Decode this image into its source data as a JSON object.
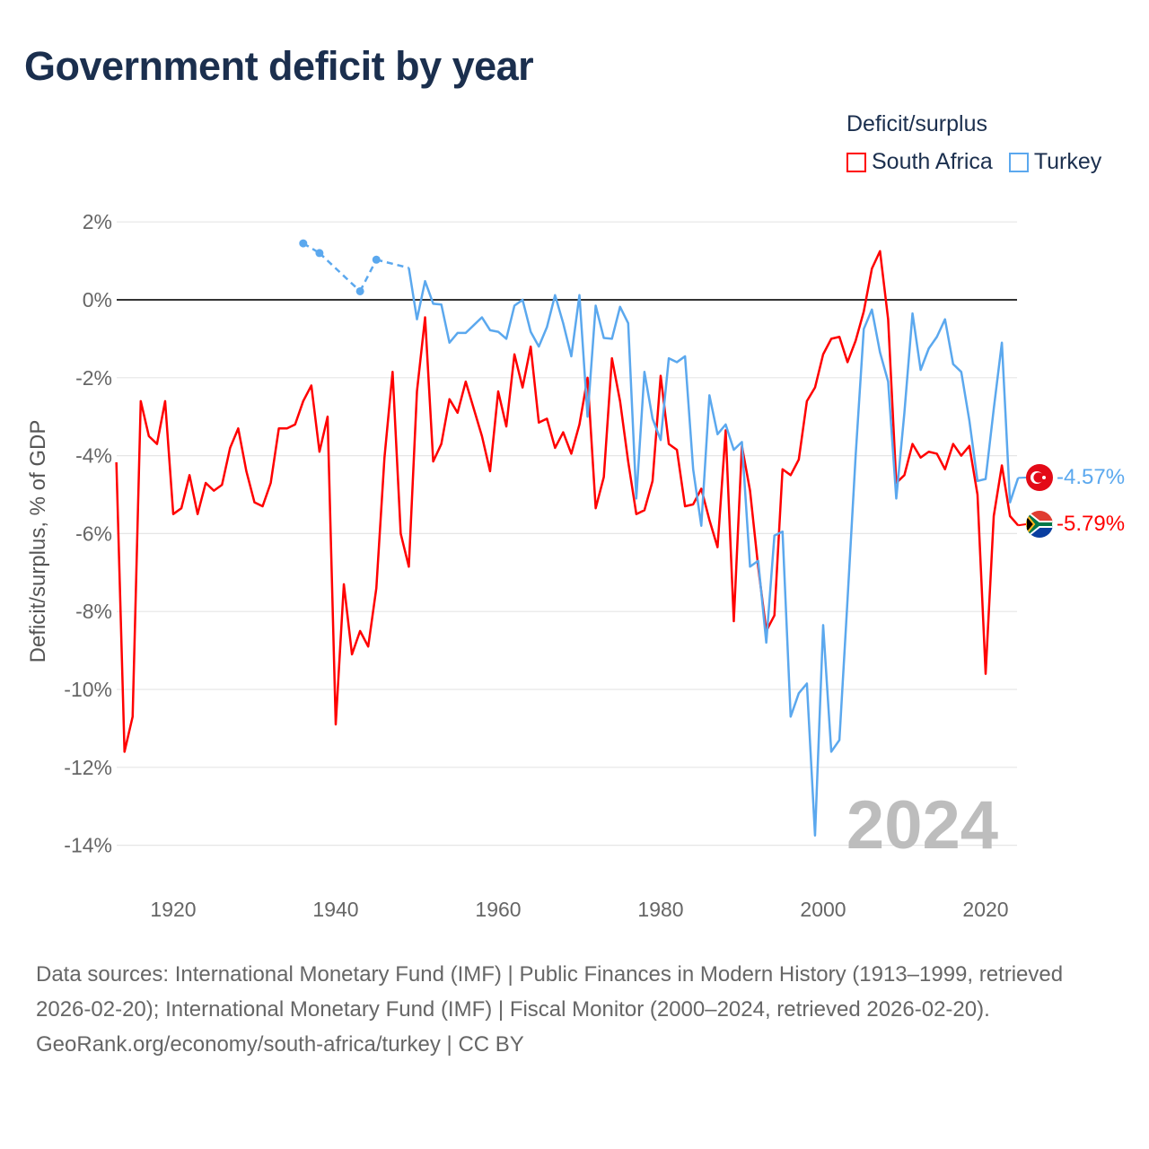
{
  "title": "Government deficit by year",
  "legend": {
    "title": "Deficit/surplus",
    "items": [
      {
        "name": "South Africa",
        "color": "#ff0000"
      },
      {
        "name": "Turkey",
        "color": "#5ba8ee"
      }
    ]
  },
  "chart_data": {
    "type": "line",
    "title": "Government deficit by year",
    "xlabel": "",
    "ylabel": "Deficit/surplus, % of GDP",
    "xlim": [
      1913,
      2024
    ],
    "ylim": [
      -14,
      2
    ],
    "x_ticks": [
      1920,
      1940,
      1960,
      1980,
      2000,
      2020
    ],
    "y_ticks": [
      2,
      0,
      -2,
      -4,
      -6,
      -8,
      -10,
      -12,
      -14
    ],
    "y_tick_labels": [
      "2%",
      "0%",
      "-2%",
      "-4%",
      "-6%",
      "-8%",
      "-10%",
      "-12%",
      "-14%"
    ],
    "grid": true,
    "legend_position": "top-right",
    "year_annotation": "2024",
    "start_year": 1913,
    "series": [
      {
        "name": "South Africa",
        "color": "#ff0000",
        "end_label": "-5.79%",
        "values": [
          -4.17,
          -11.6,
          -10.7,
          -2.6,
          -3.5,
          -3.7,
          -2.6,
          -5.5,
          -5.35,
          -4.5,
          -5.5,
          -4.7,
          -4.9,
          -4.75,
          -3.8,
          -3.3,
          -4.4,
          -5.2,
          -5.3,
          -4.7,
          -3.3,
          -3.3,
          -3.2,
          -2.6,
          -2.2,
          -3.9,
          -3.0,
          -10.9,
          -7.3,
          -9.1,
          -8.5,
          -8.9,
          -7.4,
          -4.05,
          -1.85,
          -6.0,
          -6.85,
          -2.35,
          -0.45,
          -4.15,
          -3.7,
          -2.55,
          -2.9,
          -2.1,
          -2.8,
          -3.5,
          -4.4,
          -2.35,
          -3.25,
          -1.4,
          -2.25,
          -1.2,
          -3.15,
          -3.05,
          -3.8,
          -3.4,
          -3.95,
          -3.2,
          -2.0,
          -5.35,
          -4.55,
          -1.5,
          -2.6,
          -4.15,
          -5.5,
          -5.4,
          -4.65,
          -1.95,
          -3.7,
          -3.85,
          -5.3,
          -5.25,
          -4.85,
          -5.65,
          -6.35,
          -3.35,
          -8.25,
          -3.75,
          -4.9,
          -6.85,
          -8.5,
          -8.1,
          -4.35,
          -4.5,
          -4.1,
          -2.6,
          -2.25,
          -1.4,
          -1.0,
          -0.95,
          -1.6,
          -1.05,
          -0.3,
          0.8,
          1.25,
          -0.5,
          -4.7,
          -4.5,
          -3.7,
          -4.05,
          -3.9,
          -3.95,
          -4.35,
          -3.7,
          -4.0,
          -3.75,
          -5.0,
          -9.6,
          -5.55,
          -4.25,
          -5.55,
          -5.79
        ]
      },
      {
        "name": "Turkey",
        "color": "#5ba8ee",
        "end_label": "-4.57%",
        "values": [
          null,
          null,
          null,
          null,
          null,
          null,
          null,
          null,
          null,
          null,
          null,
          null,
          null,
          null,
          null,
          null,
          null,
          null,
          null,
          null,
          null,
          null,
          null,
          1.45,
          null,
          1.2,
          null,
          null,
          null,
          null,
          0.22,
          null,
          1.03,
          null,
          null,
          null,
          0.82,
          -0.5,
          0.48,
          -0.1,
          -0.12,
          -1.1,
          -0.85,
          -0.85,
          -0.65,
          -0.45,
          -0.78,
          -0.82,
          -1.0,
          -0.15,
          0.0,
          -0.82,
          -1.2,
          -0.7,
          0.12,
          -0.6,
          -1.45,
          0.12,
          -3.0,
          -0.15,
          -0.98,
          -1.0,
          -0.18,
          -0.6,
          -5.1,
          -1.85,
          -3.05,
          -3.6,
          -1.5,
          -1.6,
          -1.45,
          -4.35,
          -5.8,
          -2.45,
          -3.45,
          -3.2,
          -3.85,
          -3.65,
          -6.85,
          -6.7,
          -8.8,
          -6.05,
          -5.95,
          -10.7,
          -10.1,
          -9.85,
          -13.75,
          -8.35,
          -11.6,
          -11.3,
          -7.7,
          -4.0,
          -0.75,
          -0.25,
          -1.35,
          -2.1,
          -5.1,
          -2.9,
          -0.35,
          -1.8,
          -1.25,
          -0.95,
          -0.5,
          -1.65,
          -1.85,
          -3.1,
          -4.65,
          -4.6,
          -2.8,
          -1.1,
          -5.2,
          -4.57
        ]
      }
    ]
  },
  "footer": {
    "sources": "Data sources: International Monetary Fund (IMF) | Public Finances in Modern History (1913–1999, retrieved 2026-02-20); International Monetary Fund (IMF) | Fiscal Monitor (2000–2024, retrieved 2026-02-20).",
    "credit": "GeoRank.org/economy/south-africa/turkey | CC BY"
  }
}
